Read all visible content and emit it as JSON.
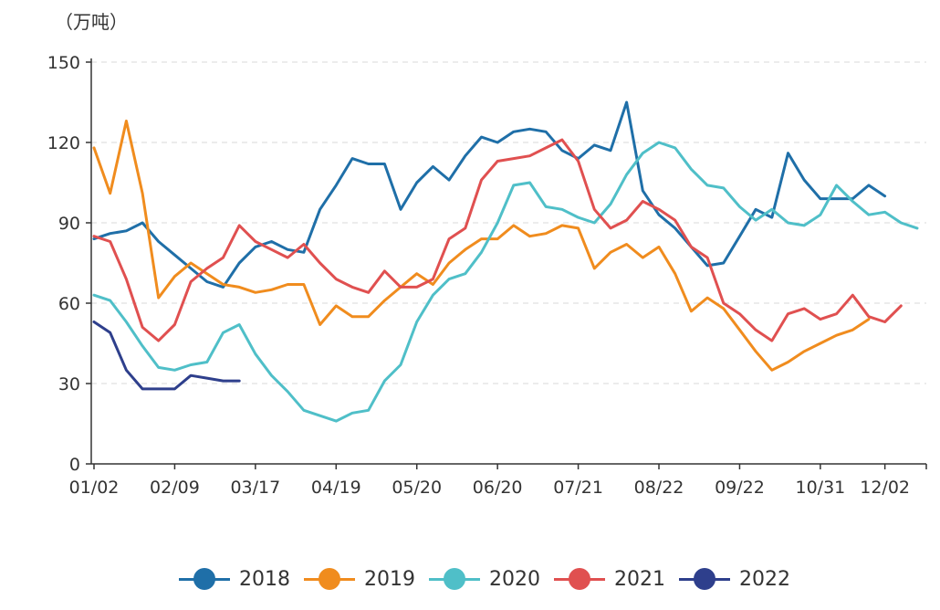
{
  "chart_data": {
    "type": "line",
    "unit_label": "（万吨）",
    "xlabel": "",
    "ylabel": "",
    "ylim": [
      0,
      150
    ],
    "yticks": [
      0,
      30,
      60,
      90,
      120,
      150
    ],
    "x_tick_labels": [
      "01/02",
      "02/09",
      "03/17",
      "04/19",
      "05/20",
      "06/20",
      "07/21",
      "08/22",
      "09/22",
      "10/31",
      "12/02"
    ],
    "x_week_range": [
      1,
      52
    ],
    "x_tick_weeks": [
      1,
      6,
      11,
      16,
      21,
      26,
      31,
      36,
      41,
      46,
      50
    ],
    "grid": "horizontal-dashed",
    "legend_position": "bottom-center",
    "series": [
      {
        "name": "2018",
        "color": "#1f6fa8",
        "values": [
          84,
          86,
          87,
          90,
          83,
          78,
          73,
          68,
          66,
          75,
          81,
          83,
          80,
          79,
          95,
          104,
          114,
          112,
          112,
          95,
          105,
          111,
          106,
          115,
          122,
          120,
          124,
          125,
          124,
          117,
          114,
          119,
          117,
          135,
          102,
          93,
          88,
          81,
          74,
          75,
          85,
          95,
          92,
          116,
          106,
          99,
          99,
          99,
          104,
          100
        ]
      },
      {
        "name": "2019",
        "color": "#f08c1e",
        "values": [
          118,
          101,
          128,
          101,
          62,
          70,
          75,
          71,
          67,
          66,
          64,
          65,
          67,
          67,
          52,
          59,
          55,
          55,
          61,
          66,
          71,
          67,
          75,
          80,
          84,
          84,
          89,
          85,
          86,
          89,
          88,
          73,
          79,
          82,
          77,
          81,
          71,
          57,
          62,
          58,
          50,
          42,
          35,
          38,
          42,
          45,
          48,
          50,
          54
        ]
      },
      {
        "name": "2020",
        "color": "#4fbfc8",
        "values": [
          63,
          61,
          53,
          44,
          36,
          35,
          37,
          38,
          49,
          52,
          41,
          33,
          27,
          20,
          18,
          16,
          19,
          20,
          31,
          37,
          53,
          63,
          69,
          71,
          79,
          90,
          104,
          105,
          96,
          95,
          92,
          90,
          97,
          108,
          116,
          120,
          118,
          110,
          104,
          103,
          96,
          91,
          95,
          90,
          89,
          93,
          104,
          98,
          93,
          94,
          90,
          88
        ]
      },
      {
        "name": "2021",
        "color": "#e05050",
        "values": [
          85,
          83,
          69,
          51,
          46,
          52,
          68,
          73,
          77,
          89,
          83,
          80,
          77,
          82,
          75,
          69,
          66,
          64,
          72,
          66,
          66,
          69,
          84,
          88,
          106,
          113,
          114,
          115,
          118,
          121,
          113,
          95,
          88,
          91,
          98,
          95,
          91,
          81,
          77,
          60,
          56,
          50,
          46,
          56,
          58,
          54,
          56,
          63,
          55,
          53,
          59
        ]
      },
      {
        "name": "2022",
        "color": "#2e3f8c",
        "values": [
          53,
          49,
          35,
          28,
          28,
          28,
          33,
          32,
          31,
          31
        ]
      }
    ]
  }
}
